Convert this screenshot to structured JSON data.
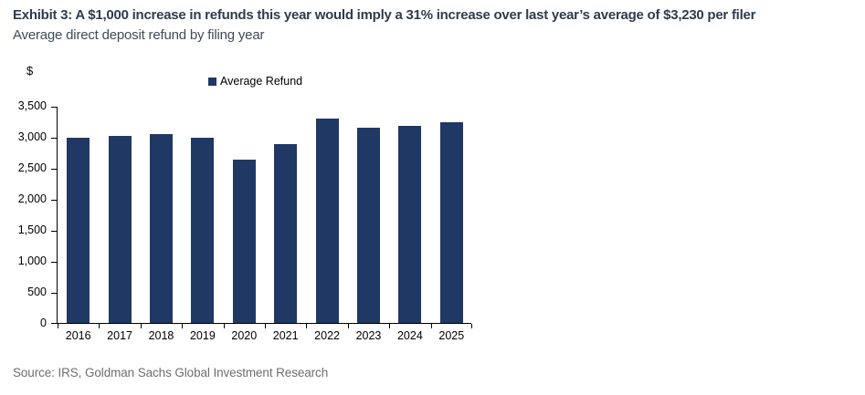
{
  "header": {
    "title": "Exhibit 3: A $1,000 increase in refunds this year would imply a 31% increase over last year’s average of $3,230 per filer",
    "subtitle": "Average direct deposit refund by filing year"
  },
  "chart_data": {
    "type": "bar",
    "title": "Average direct deposit refund by filing year",
    "unit_label": "$",
    "xlabel": "",
    "ylabel": "$",
    "categories": [
      "2016",
      "2017",
      "2018",
      "2019",
      "2020",
      "2021",
      "2022",
      "2023",
      "2024",
      "2025"
    ],
    "series": [
      {
        "name": "Average Refund",
        "values": [
          2990,
          3020,
          3050,
          2980,
          2630,
          2880,
          3300,
          3140,
          3170,
          3230
        ]
      }
    ],
    "ylim": [
      0,
      3500
    ],
    "ytick_step": 500,
    "yticklabels": [
      "0",
      "500",
      "1,000",
      "1,500",
      "2,000",
      "2,500",
      "3,000",
      "3,500"
    ],
    "grid": false,
    "legend_position": "top-center"
  },
  "legend": {
    "items": [
      {
        "label": "Average Refund",
        "color": "#1f3864"
      }
    ]
  },
  "footer": {
    "source": "Source: IRS, Goldman Sachs Global Investment Research"
  },
  "colors": {
    "bar": "#1f3864",
    "title_text": "#2e3d4d",
    "axis": "#000000",
    "source_text": "#6e6e6e"
  }
}
